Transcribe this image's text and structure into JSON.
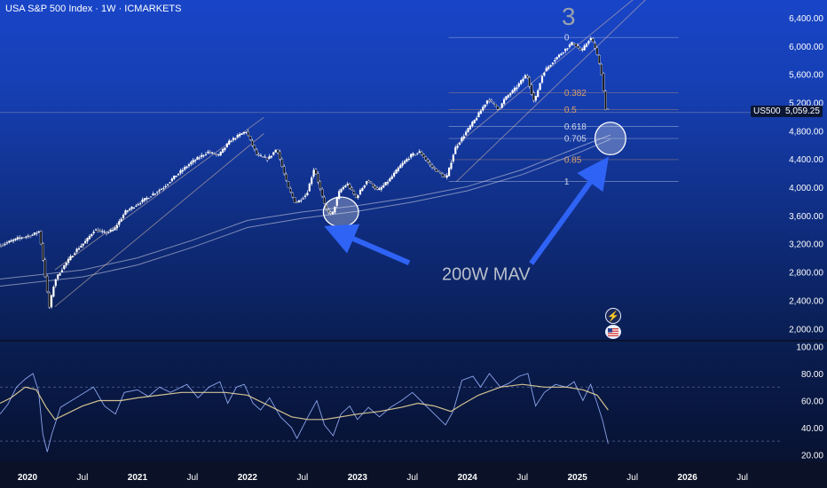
{
  "header": {
    "title": "USA S&P 500 Index · 1W · ICMARKETS"
  },
  "symbol_badge": {
    "symbol": "US500",
    "price": "5,059.25"
  },
  "icons": [
    "lightning-icon",
    "us-flag-icon"
  ],
  "chart_data": [
    {
      "type": "candlestick",
      "title": "USA S&P 500 Index · 1W · ICMARKETS",
      "timeframe": "1W",
      "price_axis": {
        "ticks": [
          "6,400.00",
          "6,000.00",
          "5,600.00",
          "5,200.00",
          "4,800.00",
          "4,400.00",
          "4,000.00",
          "3,600.00",
          "3,200.00",
          "2,800.00",
          "2,400.00",
          "2,000.00"
        ],
        "tick_values": [
          6400,
          6000,
          5600,
          5200,
          4800,
          4400,
          4000,
          3600,
          3200,
          2800,
          2400,
          2000
        ],
        "ylim": [
          1840,
          6650
        ]
      },
      "time_axis": {
        "labels": [
          "2020",
          "Jul",
          "2021",
          "Jul",
          "2022",
          "Jul",
          "2023",
          "Jul",
          "2024",
          "Jul",
          "2025",
          "Jul",
          "2026",
          "Jul"
        ],
        "label_dates": [
          2020.0,
          2020.5,
          2021.0,
          2021.5,
          2022.0,
          2022.5,
          2023.0,
          2023.5,
          2024.0,
          2024.5,
          2025.0,
          2025.5,
          2026.0,
          2026.5
        ],
        "xlim": [
          2019.75,
          2026.85
        ]
      },
      "price_path_anchors": [
        [
          2019.75,
          3170
        ],
        [
          2019.85,
          3230
        ],
        [
          2019.95,
          3290
        ],
        [
          2020.05,
          3320
        ],
        [
          2020.12,
          3380
        ],
        [
          2020.17,
          2780
        ],
        [
          2020.21,
          2290
        ],
        [
          2020.26,
          2680
        ],
        [
          2020.35,
          2900
        ],
        [
          2020.45,
          3100
        ],
        [
          2020.55,
          3250
        ],
        [
          2020.62,
          3400
        ],
        [
          2020.72,
          3350
        ],
        [
          2020.8,
          3400
        ],
        [
          2020.9,
          3650
        ],
        [
          2021.0,
          3750
        ],
        [
          2021.15,
          3900
        ],
        [
          2021.25,
          4000
        ],
        [
          2021.35,
          4150
        ],
        [
          2021.5,
          4350
        ],
        [
          2021.65,
          4500
        ],
        [
          2021.75,
          4450
        ],
        [
          2021.85,
          4650
        ],
        [
          2021.95,
          4750
        ],
        [
          2022.0,
          4790
        ],
        [
          2022.1,
          4450
        ],
        [
          2022.2,
          4400
        ],
        [
          2022.28,
          4550
        ],
        [
          2022.38,
          4000
        ],
        [
          2022.45,
          3770
        ],
        [
          2022.55,
          3900
        ],
        [
          2022.62,
          4280
        ],
        [
          2022.72,
          3700
        ],
        [
          2022.78,
          3600
        ],
        [
          2022.85,
          3950
        ],
        [
          2022.92,
          4050
        ],
        [
          2023.0,
          3850
        ],
        [
          2023.1,
          4100
        ],
        [
          2023.2,
          3950
        ],
        [
          2023.3,
          4100
        ],
        [
          2023.4,
          4300
        ],
        [
          2023.5,
          4450
        ],
        [
          2023.58,
          4500
        ],
        [
          2023.68,
          4300
        ],
        [
          2023.76,
          4200
        ],
        [
          2023.82,
          4120
        ],
        [
          2023.9,
          4550
        ],
        [
          2024.0,
          4780
        ],
        [
          2024.1,
          5000
        ],
        [
          2024.2,
          5250
        ],
        [
          2024.3,
          5100
        ],
        [
          2024.35,
          5250
        ],
        [
          2024.45,
          5400
        ],
        [
          2024.55,
          5600
        ],
        [
          2024.62,
          5200
        ],
        [
          2024.7,
          5620
        ],
        [
          2024.8,
          5800
        ],
        [
          2024.9,
          5950
        ],
        [
          2024.97,
          6050
        ],
        [
          2025.05,
          5920
        ],
        [
          2025.13,
          6120
        ],
        [
          2025.18,
          5950
        ],
        [
          2025.23,
          5620
        ],
        [
          2025.27,
          5100
        ]
      ],
      "moving_averages": [
        {
          "name": "200W MAV",
          "values": [
            [
              2019.75,
              2700
            ],
            [
              2020.5,
              2830
            ],
            [
              2021.0,
              3000
            ],
            [
              2021.5,
              3250
            ],
            [
              2022.0,
              3530
            ],
            [
              2022.5,
              3650
            ],
            [
              2023.0,
              3740
            ],
            [
              2023.5,
              3860
            ],
            [
              2024.0,
              4010
            ],
            [
              2024.5,
              4250
            ],
            [
              2025.0,
              4560
            ],
            [
              2025.3,
              4740
            ]
          ]
        },
        {
          "name": "",
          "values": [
            [
              2019.75,
              2600
            ],
            [
              2020.5,
              2730
            ],
            [
              2021.0,
              2900
            ],
            [
              2021.5,
              3150
            ],
            [
              2022.0,
              3430
            ],
            [
              2022.5,
              3560
            ],
            [
              2023.0,
              3660
            ],
            [
              2023.5,
              3790
            ],
            [
              2024.0,
              3950
            ],
            [
              2024.5,
              4180
            ],
            [
              2025.0,
              4480
            ],
            [
              2025.3,
              4680
            ]
          ]
        }
      ],
      "trend_channels": [
        {
          "upper": [
            [
              2020.25,
              2830
            ],
            [
              2022.15,
              4990
            ]
          ],
          "lower": [
            [
              2020.25,
              2310
            ],
            [
              2022.15,
              4760
            ]
          ]
        },
        {
          "upper": [
            [
              2023.9,
              4600
            ],
            [
              2025.65,
              6840
            ]
          ],
          "lower": [
            [
              2023.9,
              4080
            ],
            [
              2025.65,
              6700
            ]
          ]
        }
      ],
      "fibonacci": {
        "levels": [
          {
            "ratio": "0",
            "price": 6120,
            "color": "#cfd6e8"
          },
          {
            "ratio": "0.382",
            "price": 5340,
            "color": "#d9a06a"
          },
          {
            "ratio": "0.5",
            "price": 5100,
            "color": "#d9a06a"
          },
          {
            "ratio": "0.618",
            "price": 4860,
            "color": "#cfd6e8"
          },
          {
            "ratio": "0.705",
            "price": 4690,
            "color": "#cfd6e8"
          },
          {
            "ratio": "0.85",
            "price": 4390,
            "color": "#d9a06a"
          },
          {
            "ratio": "1",
            "price": 4080,
            "color": "#cfd6e8"
          }
        ],
        "x_range": [
          2023.83,
          2025.92
        ]
      },
      "annotations": [
        {
          "text": "3",
          "x": 2024.92,
          "price": 6300,
          "color": "#9aa1ad"
        },
        {
          "text": "200W MAV",
          "x": 2024.17,
          "price": 2690,
          "color": "#b9bfca"
        }
      ],
      "highlight_circles": [
        {
          "x": 2022.85,
          "price": 3650,
          "rx_years": 0.16,
          "ry_price": 210
        },
        {
          "x": 2025.3,
          "price": 4690,
          "rx_years": 0.14,
          "ry_price": 230
        }
      ],
      "arrows": [
        {
          "from": [
            2023.47,
            2930
          ],
          "to": [
            2022.83,
            3360
          ]
        },
        {
          "from": [
            2024.58,
            2920
          ],
          "to": [
            2025.2,
            4250
          ]
        }
      ],
      "last_price_line": 5059.25,
      "legend": "none",
      "grid": false
    },
    {
      "type": "line",
      "title": "",
      "ylim": [
        15,
        103
      ],
      "y_ticks": [
        "100.00",
        "80.00",
        "60.00",
        "40.00",
        "20.00"
      ],
      "y_tick_values": [
        100,
        80,
        60,
        40,
        20
      ],
      "guides": [
        70,
        30
      ],
      "series": [
        {
          "name": "",
          "values": [
            [
              2019.75,
              50
            ],
            [
              2019.82,
              57
            ],
            [
              2019.9,
              70
            ],
            [
              2019.98,
              76
            ],
            [
              2020.05,
              80
            ],
            [
              2020.1,
              67
            ],
            [
              2020.14,
              35
            ],
            [
              2020.18,
              22
            ],
            [
              2020.22,
              35
            ],
            [
              2020.3,
              55
            ],
            [
              2020.4,
              60
            ],
            [
              2020.5,
              65
            ],
            [
              2020.6,
              70
            ],
            [
              2020.7,
              56
            ],
            [
              2020.8,
              50
            ],
            [
              2020.88,
              66
            ],
            [
              2021.0,
              68
            ],
            [
              2021.1,
              63
            ],
            [
              2021.2,
              70
            ],
            [
              2021.3,
              66
            ],
            [
              2021.45,
              72
            ],
            [
              2021.55,
              62
            ],
            [
              2021.65,
              70
            ],
            [
              2021.75,
              74
            ],
            [
              2021.82,
              58
            ],
            [
              2021.9,
              70
            ],
            [
              2021.97,
              72
            ],
            [
              2022.05,
              58
            ],
            [
              2022.12,
              53
            ],
            [
              2022.2,
              62
            ],
            [
              2022.3,
              48
            ],
            [
              2022.4,
              40
            ],
            [
              2022.45,
              32
            ],
            [
              2022.55,
              48
            ],
            [
              2022.63,
              60
            ],
            [
              2022.7,
              42
            ],
            [
              2022.78,
              34
            ],
            [
              2022.85,
              50
            ],
            [
              2022.93,
              56
            ],
            [
              2023.0,
              46
            ],
            [
              2023.1,
              55
            ],
            [
              2023.2,
              48
            ],
            [
              2023.3,
              55
            ],
            [
              2023.4,
              60
            ],
            [
              2023.5,
              66
            ],
            [
              2023.6,
              58
            ],
            [
              2023.7,
              50
            ],
            [
              2023.8,
              42
            ],
            [
              2023.87,
              52
            ],
            [
              2023.95,
              75
            ],
            [
              2024.05,
              78
            ],
            [
              2024.12,
              70
            ],
            [
              2024.2,
              80
            ],
            [
              2024.3,
              70
            ],
            [
              2024.38,
              73
            ],
            [
              2024.47,
              78
            ],
            [
              2024.55,
              80
            ],
            [
              2024.62,
              56
            ],
            [
              2024.7,
              66
            ],
            [
              2024.8,
              72
            ],
            [
              2024.9,
              70
            ],
            [
              2024.97,
              74
            ],
            [
              2025.05,
              60
            ],
            [
              2025.12,
              72
            ],
            [
              2025.18,
              58
            ],
            [
              2025.23,
              45
            ],
            [
              2025.28,
              28
            ]
          ]
        },
        {
          "name": "",
          "values": [
            [
              2019.75,
              58
            ],
            [
              2019.85,
              62
            ],
            [
              2019.98,
              70
            ],
            [
              2020.08,
              68
            ],
            [
              2020.17,
              55
            ],
            [
              2020.25,
              46
            ],
            [
              2020.35,
              50
            ],
            [
              2020.5,
              56
            ],
            [
              2020.65,
              60
            ],
            [
              2020.85,
              60
            ],
            [
              2021.0,
              62
            ],
            [
              2021.2,
              64
            ],
            [
              2021.4,
              66
            ],
            [
              2021.6,
              66
            ],
            [
              2021.8,
              66
            ],
            [
              2022.0,
              64
            ],
            [
              2022.2,
              56
            ],
            [
              2022.4,
              48
            ],
            [
              2022.55,
              46
            ],
            [
              2022.7,
              46
            ],
            [
              2022.85,
              48
            ],
            [
              2023.0,
              50
            ],
            [
              2023.2,
              52
            ],
            [
              2023.4,
              55
            ],
            [
              2023.55,
              58
            ],
            [
              2023.7,
              56
            ],
            [
              2023.85,
              52
            ],
            [
              2023.95,
              57
            ],
            [
              2024.1,
              64
            ],
            [
              2024.3,
              70
            ],
            [
              2024.5,
              72
            ],
            [
              2024.7,
              70
            ],
            [
              2024.9,
              70
            ],
            [
              2025.05,
              68
            ],
            [
              2025.18,
              64
            ],
            [
              2025.28,
              53
            ]
          ]
        }
      ]
    }
  ]
}
